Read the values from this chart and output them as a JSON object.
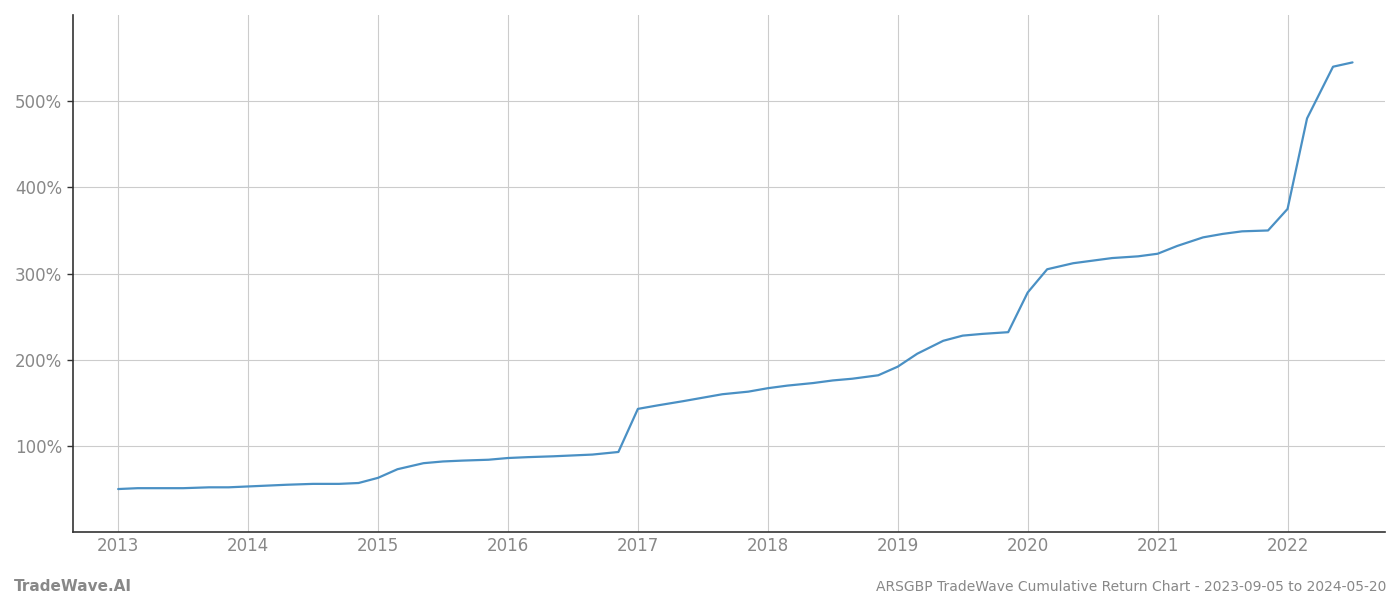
{
  "title": "ARSGBP TradeWave Cumulative Return Chart - 2023-09-05 to 2024-05-20",
  "watermark": "TradeWave.AI",
  "line_color": "#4a90c4",
  "background_color": "#ffffff",
  "grid_color": "#cccccc",
  "axis_color": "#888888",
  "spine_color": "#333333",
  "x_years": [
    2013,
    2014,
    2015,
    2016,
    2017,
    2018,
    2019,
    2020,
    2021,
    2022
  ],
  "x_values": [
    2013.0,
    2013.15,
    2013.3,
    2013.5,
    2013.7,
    2013.85,
    2014.0,
    2014.15,
    2014.3,
    2014.5,
    2014.7,
    2014.85,
    2015.0,
    2015.15,
    2015.35,
    2015.5,
    2015.65,
    2015.85,
    2016.0,
    2016.15,
    2016.35,
    2016.5,
    2016.65,
    2016.85,
    2017.0,
    2017.15,
    2017.35,
    2017.5,
    2017.65,
    2017.85,
    2018.0,
    2018.15,
    2018.35,
    2018.5,
    2018.65,
    2018.85,
    2019.0,
    2019.15,
    2019.35,
    2019.5,
    2019.65,
    2019.85,
    2020.0,
    2020.15,
    2020.35,
    2020.5,
    2020.65,
    2020.85,
    2021.0,
    2021.15,
    2021.35,
    2021.5,
    2021.65,
    2021.85,
    2022.0,
    2022.15,
    2022.35,
    2022.5
  ],
  "y_values": [
    50,
    51,
    51,
    51,
    52,
    52,
    53,
    54,
    55,
    56,
    56,
    57,
    63,
    73,
    80,
    82,
    83,
    84,
    86,
    87,
    88,
    89,
    90,
    93,
    143,
    147,
    152,
    156,
    160,
    163,
    167,
    170,
    173,
    176,
    178,
    182,
    192,
    207,
    222,
    228,
    230,
    232,
    278,
    305,
    312,
    315,
    318,
    320,
    323,
    332,
    342,
    346,
    349,
    350,
    375,
    480,
    540,
    545
  ],
  "ylim": [
    0,
    600
  ],
  "xlim": [
    2012.65,
    2022.75
  ],
  "yticks": [
    100,
    200,
    300,
    400,
    500
  ],
  "ytick_labels": [
    "100%",
    "200%",
    "300%",
    "400%",
    "500%"
  ],
  "title_fontsize": 10,
  "watermark_fontsize": 11,
  "tick_fontsize": 12,
  "line_width": 1.6
}
